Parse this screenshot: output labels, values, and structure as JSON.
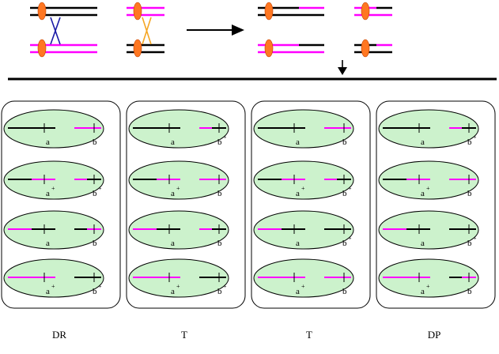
{
  "colors": {
    "parent_a": "#000000",
    "parent_b": "#ff00ff",
    "centromere": "#ff7722",
    "cell_fill": "#ccf2cc",
    "crossover_left": "#1a1aa6",
    "crossover_right": "#f5a623"
  },
  "tetrads": [
    {
      "caption": "DR",
      "spores": [
        {
          "left": [
            "k",
            "k"
          ],
          "right": [
            "m",
            "m"
          ],
          "a": "a",
          "a_plus": false,
          "b": "b",
          "b_plus": false
        },
        {
          "left": [
            "k",
            "m"
          ],
          "right": [
            "m",
            "k"
          ],
          "a": "a",
          "a_plus": true,
          "b": "b",
          "b_plus": true
        },
        {
          "left": [
            "m",
            "k"
          ],
          "right": [
            "k",
            "m"
          ],
          "a": "a",
          "a_plus": false,
          "b": "b",
          "b_plus": false
        },
        {
          "left": [
            "m",
            "m"
          ],
          "right": [
            "k",
            "k"
          ],
          "a": "a",
          "a_plus": true,
          "b": "b",
          "b_plus": true
        }
      ]
    },
    {
      "caption": "T",
      "spores": [
        {
          "left": [
            "k",
            "k"
          ],
          "right": [
            "m",
            "k"
          ],
          "a": "a",
          "a_plus": false,
          "b": "b",
          "b_plus": true
        },
        {
          "left": [
            "k",
            "m"
          ],
          "right": [
            "m",
            "m"
          ],
          "a": "a",
          "a_plus": true,
          "b": "b",
          "b_plus": false
        },
        {
          "left": [
            "m",
            "k"
          ],
          "right": [
            "m",
            "k"
          ],
          "a": "a",
          "a_plus": false,
          "b": "b",
          "b_plus": false
        },
        {
          "left": [
            "m",
            "m"
          ],
          "right": [
            "k",
            "k"
          ],
          "a": "a",
          "a_plus": true,
          "b": "b",
          "b_plus": true
        }
      ]
    },
    {
      "caption": "T",
      "spores": [
        {
          "left": [
            "k",
            "k"
          ],
          "right": [
            "m",
            "m"
          ],
          "a": "a",
          "a_plus": false,
          "b": "b",
          "b_plus": false
        },
        {
          "left": [
            "k",
            "m"
          ],
          "right": [
            "m",
            "k"
          ],
          "a": "a",
          "a_plus": true,
          "b": "b",
          "b_plus": true
        },
        {
          "left": [
            "m",
            "k"
          ],
          "right": [
            "k",
            "k"
          ],
          "a": "a",
          "a_plus": false,
          "b": "b",
          "b_plus": true
        },
        {
          "left": [
            "m",
            "m"
          ],
          "right": [
            "m",
            "m"
          ],
          "a": "a",
          "a_plus": true,
          "b": "b",
          "b_plus": false
        }
      ]
    },
    {
      "caption": "DP",
      "spores": [
        {
          "left": [
            "k",
            "k"
          ],
          "right": [
            "m",
            "k"
          ],
          "a": "a",
          "a_plus": false,
          "b": "b",
          "b_plus": true
        },
        {
          "left": [
            "k",
            "m"
          ],
          "right": [
            "m",
            "m"
          ],
          "a": "a",
          "a_plus": true,
          "b": "b",
          "b_plus": false
        },
        {
          "left": [
            "m",
            "k"
          ],
          "right": [
            "k",
            "k"
          ],
          "a": "a",
          "a_plus": false,
          "b": "b",
          "b_plus": true
        },
        {
          "left": [
            "m",
            "m"
          ],
          "right": [
            "k",
            "m"
          ],
          "a": "a",
          "a_plus": true,
          "b": "b",
          "b_plus": false
        }
      ]
    }
  ]
}
